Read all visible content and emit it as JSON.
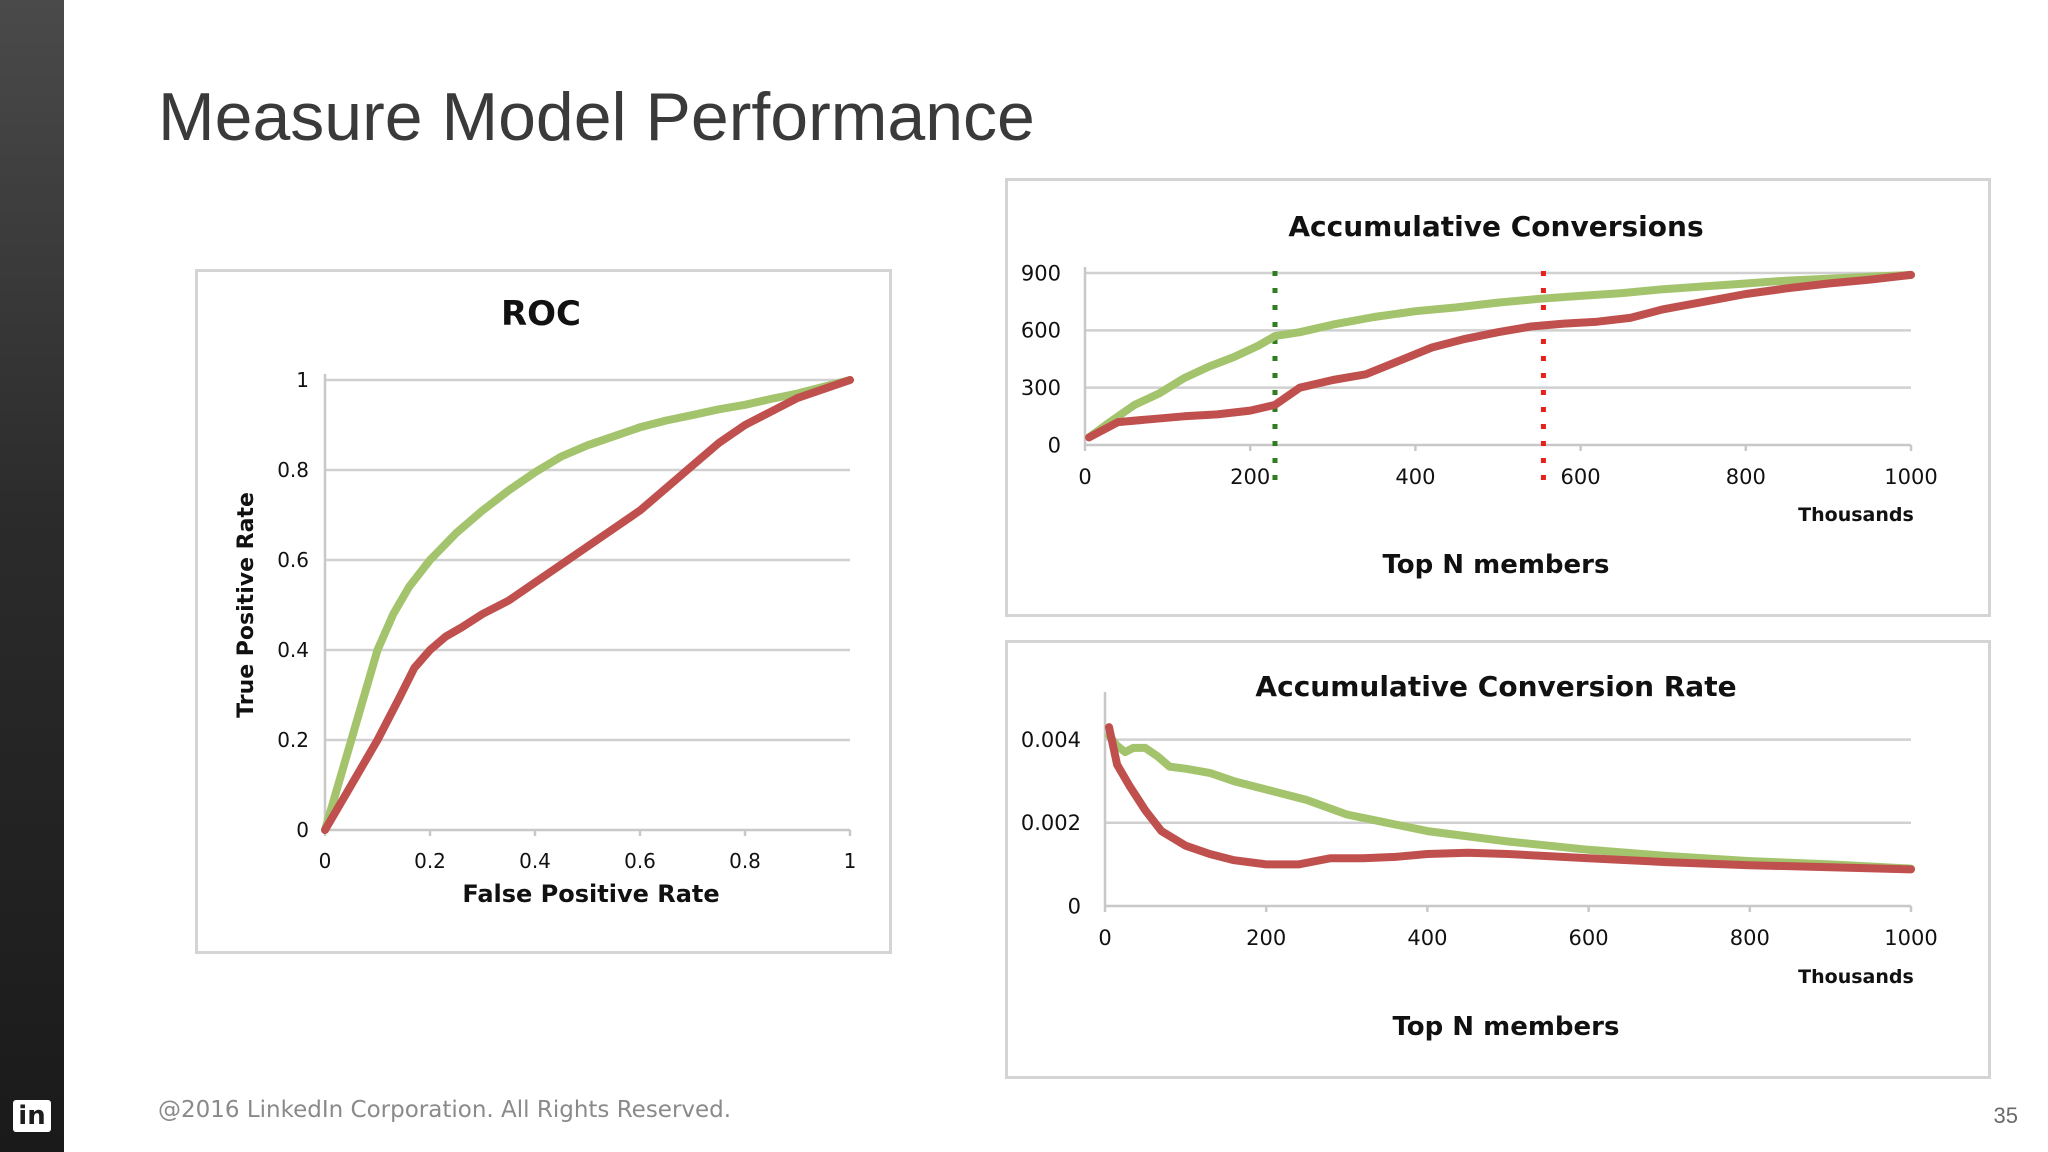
{
  "slide": {
    "title": "Measure Model Performance",
    "footer": "@2016 LinkedIn Corporation. All Rights Reserved.",
    "page_number": "35",
    "logo_text": "in"
  },
  "colors": {
    "green": "#a3c46c",
    "red": "#c0504d",
    "grid": "#d0d0d0",
    "axis": "#c8c8c8",
    "green_marker": "#2e7d1e",
    "red_marker": "#e8201c"
  },
  "chart_data": [
    {
      "id": "roc",
      "type": "line",
      "title": "ROC",
      "xlabel": "False Positive Rate",
      "ylabel": "True Positive Rate",
      "xlim": [
        0,
        1
      ],
      "ylim": [
        0,
        1
      ],
      "xticks": [
        "0",
        "0.2",
        "0.4",
        "0.6",
        "0.8",
        "1"
      ],
      "yticks": [
        "0",
        "0.2",
        "0.4",
        "0.6",
        "0.8",
        "1"
      ],
      "grid": true,
      "series": [
        {
          "color": "green",
          "x": [
            0,
            0.02,
            0.05,
            0.08,
            0.1,
            0.13,
            0.16,
            0.2,
            0.25,
            0.3,
            0.35,
            0.4,
            0.45,
            0.5,
            0.55,
            0.6,
            0.65,
            0.7,
            0.75,
            0.8,
            0.85,
            0.9,
            0.95,
            1
          ],
          "y": [
            0,
            0.08,
            0.2,
            0.32,
            0.4,
            0.48,
            0.54,
            0.6,
            0.66,
            0.71,
            0.755,
            0.795,
            0.83,
            0.855,
            0.875,
            0.895,
            0.91,
            0.922,
            0.935,
            0.945,
            0.958,
            0.97,
            0.985,
            1
          ]
        },
        {
          "color": "red",
          "x": [
            0,
            0.05,
            0.1,
            0.14,
            0.17,
            0.2,
            0.23,
            0.26,
            0.3,
            0.35,
            0.4,
            0.45,
            0.5,
            0.55,
            0.6,
            0.65,
            0.7,
            0.75,
            0.8,
            0.85,
            0.9,
            0.95,
            1
          ],
          "y": [
            0,
            0.1,
            0.2,
            0.29,
            0.36,
            0.4,
            0.43,
            0.45,
            0.48,
            0.51,
            0.55,
            0.59,
            0.63,
            0.67,
            0.71,
            0.76,
            0.81,
            0.86,
            0.9,
            0.93,
            0.96,
            0.98,
            1
          ]
        }
      ]
    },
    {
      "id": "accum-conv",
      "type": "line",
      "title": "Accumulative Conversions",
      "xlabel": "Top N members",
      "xunit_label": "Thousands",
      "xlim": [
        0,
        1000
      ],
      "ylim": [
        0,
        900
      ],
      "xticks": [
        "0",
        "200",
        "400",
        "600",
        "800",
        "1000"
      ],
      "yticks": [
        "0",
        "300",
        "600",
        "900"
      ],
      "grid": true,
      "markers": [
        {
          "x": 230,
          "color": "green_marker"
        },
        {
          "x": 555,
          "color": "red_marker"
        }
      ],
      "series": [
        {
          "color": "green",
          "x": [
            5,
            30,
            60,
            90,
            120,
            150,
            180,
            210,
            230,
            260,
            300,
            350,
            400,
            450,
            500,
            550,
            600,
            650,
            700,
            750,
            800,
            850,
            900,
            950,
            1000
          ],
          "y": [
            40,
            120,
            210,
            270,
            350,
            410,
            460,
            520,
            570,
            590,
            630,
            670,
            700,
            720,
            745,
            765,
            780,
            795,
            815,
            830,
            845,
            860,
            870,
            880,
            890
          ]
        },
        {
          "color": "red",
          "x": [
            5,
            40,
            80,
            120,
            160,
            200,
            230,
            260,
            300,
            340,
            380,
            420,
            460,
            500,
            540,
            580,
            620,
            660,
            700,
            750,
            800,
            850,
            900,
            950,
            1000
          ],
          "y": [
            40,
            120,
            135,
            150,
            160,
            180,
            210,
            300,
            340,
            370,
            440,
            510,
            555,
            590,
            620,
            635,
            645,
            665,
            710,
            750,
            790,
            820,
            845,
            865,
            890
          ]
        }
      ]
    },
    {
      "id": "accum-rate",
      "type": "line",
      "title": "Accumulative Conversion Rate",
      "xlabel": "Top N members",
      "xunit_label": "Thousands",
      "xlim": [
        0,
        1000
      ],
      "ylim": [
        0,
        0.005
      ],
      "xticks": [
        "0",
        "200",
        "400",
        "600",
        "800",
        "1000"
      ],
      "yticks": [
        "0",
        "0.002",
        "0.004"
      ],
      "grid": true,
      "series": [
        {
          "color": "green",
          "x": [
            5,
            15,
            25,
            35,
            50,
            65,
            80,
            100,
            130,
            160,
            200,
            250,
            300,
            350,
            400,
            500,
            600,
            700,
            800,
            900,
            1000
          ],
          "y": [
            0.0041,
            0.00385,
            0.0037,
            0.0038,
            0.0038,
            0.0036,
            0.00335,
            0.0033,
            0.0032,
            0.003,
            0.0028,
            0.00255,
            0.0022,
            0.002,
            0.0018,
            0.00155,
            0.00135,
            0.0012,
            0.00108,
            0.001,
            0.0009
          ]
        },
        {
          "color": "red",
          "x": [
            5,
            15,
            30,
            50,
            70,
            100,
            130,
            160,
            200,
            240,
            280,
            320,
            360,
            400,
            450,
            500,
            600,
            700,
            800,
            900,
            1000
          ],
          "y": [
            0.0043,
            0.0034,
            0.0029,
            0.0023,
            0.0018,
            0.00145,
            0.00125,
            0.0011,
            0.001,
            0.001,
            0.00115,
            0.00115,
            0.00118,
            0.00125,
            0.00128,
            0.00125,
            0.00115,
            0.00105,
            0.00098,
            0.00093,
            0.00088
          ]
        }
      ]
    }
  ]
}
